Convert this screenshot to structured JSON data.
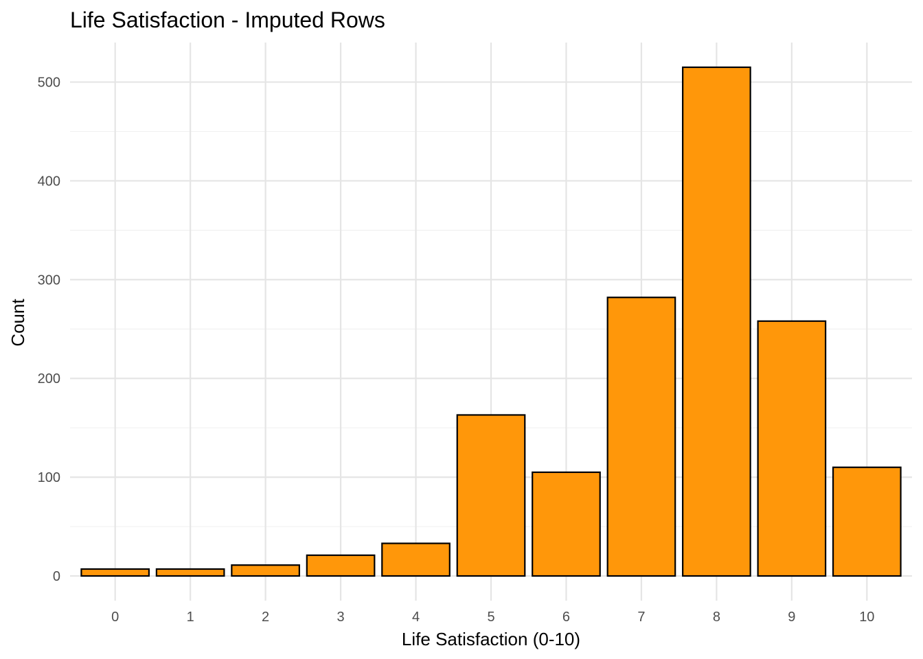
{
  "chart_data": {
    "type": "bar",
    "title": "Life Satisfaction - Imputed Rows",
    "xlabel": "Life Satisfaction (0-10)",
    "ylabel": "Count",
    "categories": [
      "0",
      "1",
      "2",
      "3",
      "4",
      "5",
      "6",
      "7",
      "8",
      "9",
      "10"
    ],
    "values": [
      7,
      7,
      11,
      21,
      33,
      163,
      105,
      282,
      515,
      258,
      110
    ],
    "yticks": [
      0,
      100,
      200,
      300,
      400,
      500
    ],
    "ylim": [
      -25,
      540
    ],
    "grid": true,
    "legend": "none",
    "colors": {
      "bar_fill": "#FF970A",
      "bar_outline": "#000000"
    }
  }
}
